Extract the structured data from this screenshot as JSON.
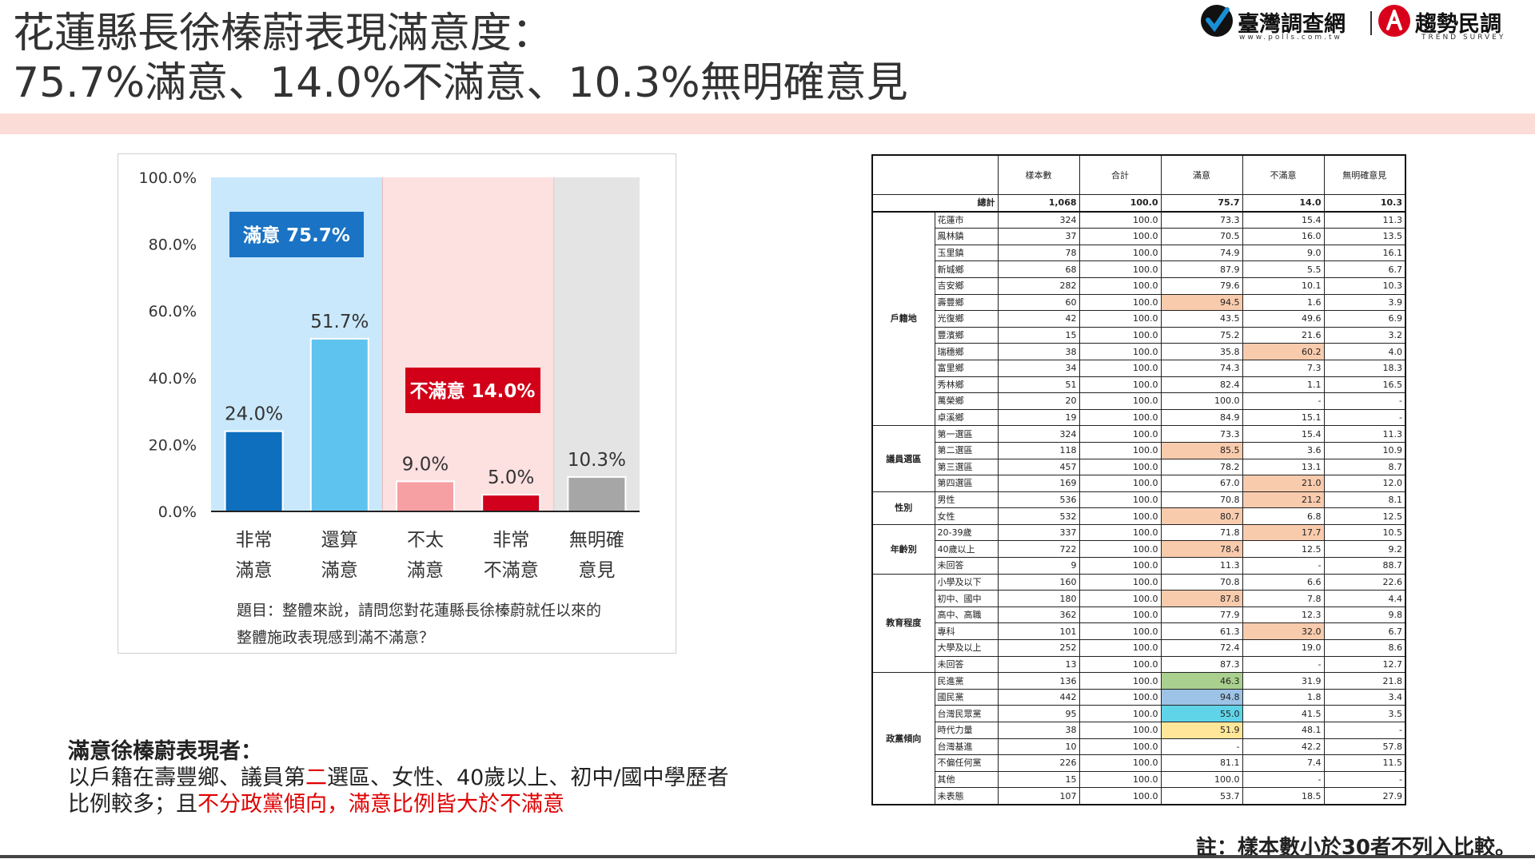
{
  "title": {
    "line1": "花蓮縣長徐榛蔚表現滿意度：",
    "line2": "75.7%滿意、14.0%不滿意、10.3%無明確意見"
  },
  "logo": {
    "left_name": "臺灣調查網",
    "left_url": "www.polls.com.tw",
    "right_name": "趨勢民調",
    "right_en": "TREND SURVEY"
  },
  "colors": {
    "satisfied_bg": "#c9e8fb",
    "dissatisfied_bg": "#fde0e0",
    "neutral_bg": "#e4e4e4",
    "very_satisfied": "#0d6fbe",
    "somewhat_satisfied": "#5ec3ef",
    "somewhat_dissatisfied": "#f6a0a4",
    "very_dissatisfied": "#d1001c",
    "no_opinion": "#a6a6a6",
    "satisfied_label_bg": "#1a73c4",
    "dissatisfied_label_bg": "#d10018"
  },
  "chart_data": {
    "type": "bar",
    "categories": [
      "非常\n滿意",
      "還算\n滿意",
      "不太\n滿意",
      "非常\n不滿意",
      "無明確\n意見"
    ],
    "values": [
      24.0,
      51.7,
      9.0,
      5.0,
      10.3
    ],
    "value_labels": [
      "24.0%",
      "51.7%",
      "9.0%",
      "5.0%",
      "10.3%"
    ],
    "ylim": [
      0,
      100
    ],
    "yticks": [
      "0.0%",
      "20.0%",
      "40.0%",
      "60.0%",
      "80.0%",
      "100.0%"
    ],
    "ytick_values": [
      0,
      20,
      40,
      60,
      80,
      100
    ],
    "group_labels": {
      "satisfied": "滿意 75.7%",
      "dissatisfied": "不滿意 14.0%"
    },
    "question": [
      "題目：整體來說，請問您對花蓮縣長徐榛蔚就任以來的",
      "整體施政表現感到滿不滿意？"
    ],
    "legend": "none",
    "grid": false
  },
  "table": {
    "headers": [
      "樣本數",
      "合計",
      "滿意",
      "不滿意",
      "無明確意見"
    ],
    "total": {
      "label": "總計",
      "values": [
        "1,068",
        "100.0",
        "75.7",
        "14.0",
        "10.3"
      ]
    },
    "groups": [
      {
        "name": "戶籍地",
        "rows": [
          {
            "label": "花蓮市",
            "values": [
              "324",
              "100.0",
              "73.3",
              "15.4",
              "11.3"
            ],
            "hl": {}
          },
          {
            "label": "鳳林鎮",
            "values": [
              "37",
              "100.0",
              "70.5",
              "16.0",
              "13.5"
            ],
            "hl": {}
          },
          {
            "label": "玉里鎮",
            "values": [
              "78",
              "100.0",
              "74.9",
              "9.0",
              "16.1"
            ],
            "hl": {}
          },
          {
            "label": "新城鄉",
            "values": [
              "68",
              "100.0",
              "87.9",
              "5.5",
              "6.7"
            ],
            "hl": {}
          },
          {
            "label": "吉安鄉",
            "values": [
              "282",
              "100.0",
              "79.6",
              "10.1",
              "10.3"
            ],
            "hl": {}
          },
          {
            "label": "壽豐鄉",
            "values": [
              "60",
              "100.0",
              "94.5",
              "1.6",
              "3.9"
            ],
            "hl": {
              "2": "orange"
            }
          },
          {
            "label": "光復鄉",
            "values": [
              "42",
              "100.0",
              "43.5",
              "49.6",
              "6.9"
            ],
            "hl": {}
          },
          {
            "label": "豐濱鄉",
            "values": [
              "15",
              "100.0",
              "75.2",
              "21.6",
              "3.2"
            ],
            "hl": {}
          },
          {
            "label": "瑞穗鄉",
            "values": [
              "38",
              "100.0",
              "35.8",
              "60.2",
              "4.0"
            ],
            "hl": {
              "3": "orange"
            }
          },
          {
            "label": "富里鄉",
            "values": [
              "34",
              "100.0",
              "74.3",
              "7.3",
              "18.3"
            ],
            "hl": {}
          },
          {
            "label": "秀林鄉",
            "values": [
              "51",
              "100.0",
              "82.4",
              "1.1",
              "16.5"
            ],
            "hl": {}
          },
          {
            "label": "萬榮鄉",
            "values": [
              "20",
              "100.0",
              "100.0",
              "-",
              "-"
            ],
            "hl": {}
          },
          {
            "label": "卓溪鄉",
            "values": [
              "19",
              "100.0",
              "84.9",
              "15.1",
              "-"
            ],
            "hl": {}
          }
        ]
      },
      {
        "name": "議員選區",
        "rows": [
          {
            "label": "第一選區",
            "values": [
              "324",
              "100.0",
              "73.3",
              "15.4",
              "11.3"
            ],
            "hl": {}
          },
          {
            "label": "第二選區",
            "values": [
              "118",
              "100.0",
              "85.5",
              "3.6",
              "10.9"
            ],
            "hl": {
              "2": "orange"
            }
          },
          {
            "label": "第三選區",
            "values": [
              "457",
              "100.0",
              "78.2",
              "13.1",
              "8.7"
            ],
            "hl": {}
          },
          {
            "label": "第四選區",
            "values": [
              "169",
              "100.0",
              "67.0",
              "21.0",
              "12.0"
            ],
            "hl": {
              "3": "orange"
            }
          }
        ]
      },
      {
        "name": "性別",
        "rows": [
          {
            "label": "男性",
            "values": [
              "536",
              "100.0",
              "70.8",
              "21.2",
              "8.1"
            ],
            "hl": {
              "3": "orange"
            }
          },
          {
            "label": "女性",
            "values": [
              "532",
              "100.0",
              "80.7",
              "6.8",
              "12.5"
            ],
            "hl": {
              "2": "orange"
            }
          }
        ]
      },
      {
        "name": "年齡別",
        "rows": [
          {
            "label": "20-39歲",
            "values": [
              "337",
              "100.0",
              "71.8",
              "17.7",
              "10.5"
            ],
            "hl": {
              "3": "orange"
            }
          },
          {
            "label": "40歲以上",
            "values": [
              "722",
              "100.0",
              "78.4",
              "12.5",
              "9.2"
            ],
            "hl": {
              "2": "orange"
            }
          },
          {
            "label": "未回答",
            "values": [
              "9",
              "100.0",
              "11.3",
              "-",
              "88.7"
            ],
            "hl": {}
          }
        ]
      },
      {
        "name": "教育程度",
        "rows": [
          {
            "label": "小學及以下",
            "values": [
              "160",
              "100.0",
              "70.8",
              "6.6",
              "22.6"
            ],
            "hl": {}
          },
          {
            "label": "初中、國中",
            "values": [
              "180",
              "100.0",
              "87.8",
              "7.8",
              "4.4"
            ],
            "hl": {
              "2": "orange"
            }
          },
          {
            "label": "高中、高職",
            "values": [
              "362",
              "100.0",
              "77.9",
              "12.3",
              "9.8"
            ],
            "hl": {}
          },
          {
            "label": "專科",
            "values": [
              "101",
              "100.0",
              "61.3",
              "32.0",
              "6.7"
            ],
            "hl": {
              "3": "orange"
            }
          },
          {
            "label": "大學及以上",
            "values": [
              "252",
              "100.0",
              "72.4",
              "19.0",
              "8.6"
            ],
            "hl": {}
          },
          {
            "label": "未回答",
            "values": [
              "13",
              "100.0",
              "87.3",
              "-",
              "12.7"
            ],
            "hl": {}
          }
        ]
      },
      {
        "name": "政黨傾向",
        "rows": [
          {
            "label": "民進黨",
            "values": [
              "136",
              "100.0",
              "46.3",
              "31.9",
              "21.8"
            ],
            "hl": {
              "2": "green"
            }
          },
          {
            "label": "國民黨",
            "values": [
              "442",
              "100.0",
              "94.8",
              "1.8",
              "3.4"
            ],
            "hl": {
              "2": "blue"
            }
          },
          {
            "label": "台灣民眾黨",
            "values": [
              "95",
              "100.0",
              "55.0",
              "41.5",
              "3.5"
            ],
            "hl": {
              "2": "cyan"
            }
          },
          {
            "label": "時代力量",
            "values": [
              "38",
              "100.0",
              "51.9",
              "48.1",
              "-"
            ],
            "hl": {
              "2": "yellow"
            }
          },
          {
            "label": "台灣基進",
            "values": [
              "10",
              "100.0",
              "-",
              "42.2",
              "57.8"
            ],
            "hl": {}
          },
          {
            "label": "不偏任何黨",
            "values": [
              "226",
              "100.0",
              "81.1",
              "7.4",
              "11.5"
            ],
            "hl": {}
          },
          {
            "label": "其他",
            "values": [
              "15",
              "100.0",
              "100.0",
              "-",
              "-"
            ],
            "hl": {}
          },
          {
            "label": "未表態",
            "values": [
              "107",
              "100.0",
              "53.7",
              "18.5",
              "27.9"
            ],
            "hl": {}
          }
        ]
      }
    ]
  },
  "summary": {
    "heading": "滿意徐榛蔚表現者：",
    "line1_a": "以戶籍在壽豐鄉、議員第",
    "line1_red": "二",
    "line1_b": "選區、女性、40歲以上、初中/國中學歷者",
    "line2_a": "比例較多；且",
    "line2_red": "不分政黨傾向，滿意比例皆大於不滿意"
  },
  "footnote": "註：樣本數小於30者不列入比較。"
}
